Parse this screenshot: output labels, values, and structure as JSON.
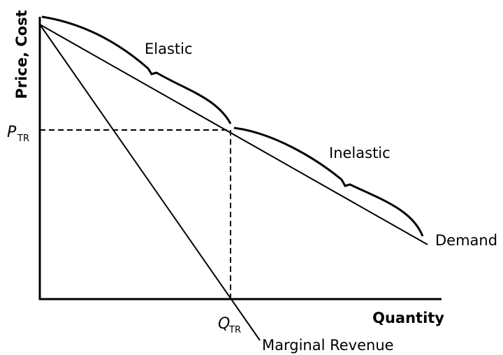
{
  "axes": {
    "y_label": "Price, Cost",
    "x_label": "Quantity"
  },
  "price_marker": {
    "symbol": "P",
    "subscript": "TR"
  },
  "quantity_marker": {
    "symbol": "Q",
    "subscript": "TR"
  },
  "regions": {
    "elastic": "Elastic",
    "inelastic": "Inelastic"
  },
  "curves": {
    "demand": "Demand",
    "marginal_revenue": "Marginal Revenue"
  }
}
